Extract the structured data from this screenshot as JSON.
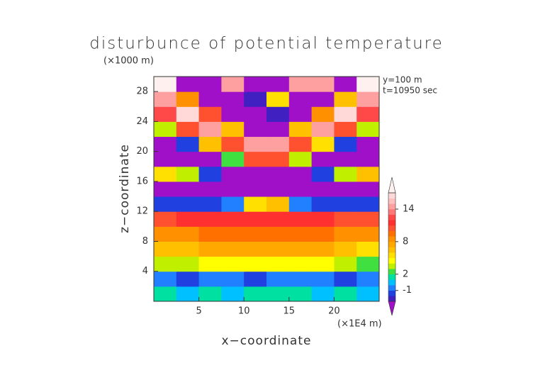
{
  "chart_data": {
    "type": "heatmap",
    "title": "disturbunce of potential temperature",
    "y_unit": "(×1000 m)",
    "x_unit": "(×1E4 m)",
    "annotations": [
      "y=100 m",
      "t=10950 sec"
    ],
    "xlabel": "x−coordinate",
    "ylabel": "z−coordinate",
    "xlim": [
      0,
      25
    ],
    "ylim": [
      0,
      30
    ],
    "xticks": [
      5,
      10,
      15,
      20
    ],
    "yticks": [
      4,
      8,
      12,
      16,
      20,
      24,
      28
    ],
    "x": [
      1.25,
      3.75,
      6.25,
      8.75,
      11.25,
      13.75,
      16.25,
      18.75,
      21.25,
      23.75
    ],
    "y": [
      1,
      3,
      5,
      7,
      9,
      11,
      13,
      15,
      17,
      19,
      21,
      23,
      25,
      27,
      29
    ],
    "values": [
      [
        1,
        0,
        1,
        0,
        1,
        1,
        1,
        0,
        1,
        0
      ],
      [
        -1,
        -2,
        -1,
        -1,
        -2,
        -1,
        -1,
        -1,
        -2,
        -1
      ],
      [
        3,
        3,
        4,
        4,
        4,
        4,
        4,
        4,
        3,
        2
      ],
      [
        6,
        6,
        7,
        7,
        7,
        7,
        7,
        7,
        6,
        5
      ],
      [
        8,
        8,
        9,
        9,
        9,
        9,
        9,
        9,
        8,
        8
      ],
      [
        10,
        11,
        11,
        11,
        11,
        11,
        11,
        11,
        10,
        10
      ],
      [
        -2,
        -2,
        -2,
        -1,
        5,
        6,
        -1,
        -2,
        -2,
        -2
      ],
      [
        -4,
        -4,
        -4,
        -4,
        -4,
        -4,
        -4,
        -4,
        -4,
        -4
      ],
      [
        5,
        3,
        -2,
        -4,
        -4,
        -4,
        -4,
        -2,
        3,
        6
      ],
      [
        -4,
        -4,
        -4,
        2,
        10,
        10,
        3,
        -4,
        -4,
        -4
      ],
      [
        -4,
        -2,
        6,
        10,
        14,
        14,
        10,
        5,
        -2,
        -4
      ],
      [
        3,
        10,
        14,
        6,
        -4,
        -4,
        6,
        14,
        10,
        3
      ],
      [
        12,
        16,
        10,
        -4,
        -4,
        -3,
        -4,
        8,
        16,
        12
      ],
      [
        14,
        8,
        -4,
        -4,
        -3,
        5,
        -4,
        -4,
        6,
        14
      ],
      [
        17,
        -4,
        -4,
        14,
        -4,
        -4,
        14,
        14,
        -4,
        17
      ]
    ],
    "colorbar": {
      "levels": [
        -3,
        -2,
        -1,
        0,
        1,
        2,
        3,
        4,
        5,
        6,
        7,
        8,
        9,
        10,
        11,
        12,
        13,
        14,
        15,
        16,
        17
      ],
      "colors": [
        "#4020c0",
        "#2040e0",
        "#2080ff",
        "#00c0ff",
        "#00e0a0",
        "#40e040",
        "#c0f000",
        "#ffff00",
        "#ffe000",
        "#ffc000",
        "#ffa800",
        "#ff9000",
        "#ff7000",
        "#ff5030",
        "#ff3030",
        "#ff4848",
        "#ff7878",
        "#ffa0a0",
        "#ffc0c0",
        "#ffd8d8"
      ],
      "below_color": "#a010c8",
      "above_color": "#fff0f0",
      "ticks": [
        -1,
        2,
        8,
        14
      ]
    }
  }
}
